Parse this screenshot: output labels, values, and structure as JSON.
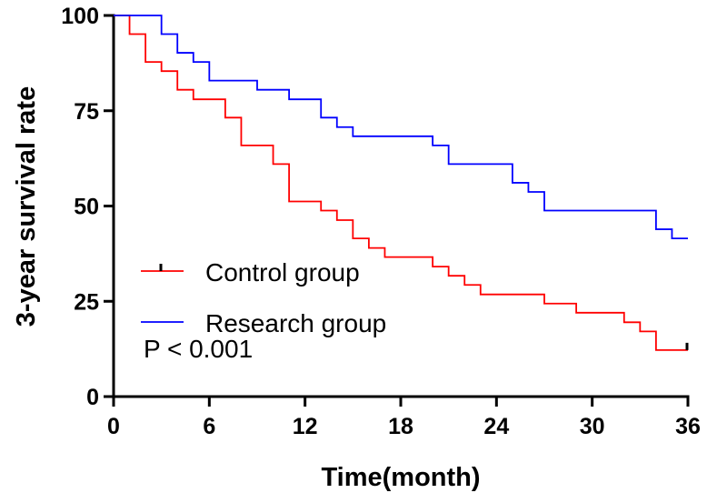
{
  "chart_data": {
    "type": "line",
    "subtype": "kaplan-meier-step",
    "xlabel": "Time(month)",
    "ylabel": "3-year survival rate",
    "xlim": [
      0,
      36
    ],
    "ylim": [
      0,
      100
    ],
    "xticks": [
      0,
      6,
      12,
      18,
      24,
      30,
      36
    ],
    "yticks": [
      0,
      25,
      50,
      75,
      100
    ],
    "grid": false,
    "legend_position": "lower-left",
    "annotation": "P < 0.001",
    "series": [
      {
        "name": "Control group",
        "color": "#ff0000",
        "x": [
          0,
          1,
          2,
          3,
          4,
          5,
          7,
          8,
          10,
          11,
          13,
          14,
          15,
          16,
          17,
          18,
          20,
          21,
          22,
          23,
          27,
          29,
          32,
          33,
          34,
          36
        ],
        "y": [
          100,
          95.1,
          87.8,
          85.4,
          80.5,
          78.0,
          73.2,
          65.9,
          61.0,
          51.2,
          48.8,
          46.3,
          41.5,
          39.0,
          36.6,
          36.6,
          34.1,
          31.7,
          29.3,
          26.8,
          24.4,
          22.0,
          19.5,
          17.1,
          12.2,
          12.2
        ],
        "censored_x": [
          36
        ]
      },
      {
        "name": "Research group",
        "color": "#0000ff",
        "x": [
          0,
          3,
          4,
          5,
          6,
          9,
          11,
          13,
          14,
          15,
          20,
          21,
          25,
          26,
          27,
          34,
          35,
          36
        ],
        "y": [
          100,
          95.1,
          90.2,
          87.8,
          82.9,
          80.5,
          78.0,
          73.2,
          70.7,
          68.3,
          65.9,
          61.0,
          56.1,
          53.7,
          48.8,
          43.9,
          41.5,
          41.5
        ],
        "censored_x": []
      }
    ]
  }
}
